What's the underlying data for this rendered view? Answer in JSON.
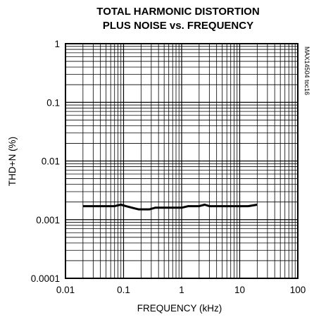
{
  "chart_data": {
    "type": "line",
    "title_lines": [
      "TOTAL HARMONIC DISTORTION",
      "PLUS NOISE vs. FREQUENCY"
    ],
    "xlabel": "FREQUENCY (kHz)",
    "ylabel": "THD+N (%)",
    "figure_code": "MAX14504 toc16",
    "x_scale": "log",
    "y_scale": "log",
    "xlim": [
      0.01,
      100
    ],
    "ylim": [
      0.0001,
      1
    ],
    "x_ticks": [
      0.01,
      0.1,
      1,
      10,
      100
    ],
    "x_tick_labels": [
      "0.01",
      "0.1",
      "1",
      "10",
      "100"
    ],
    "y_ticks": [
      0.0001,
      0.001,
      0.01,
      0.1,
      1
    ],
    "y_tick_labels": [
      "0.0001",
      "0.001",
      "0.01",
      "0.1",
      "1"
    ],
    "grid": true,
    "series": [
      {
        "x": [
          0.02,
          0.03,
          0.05,
          0.07,
          0.09,
          0.11,
          0.14,
          0.18,
          0.22,
          0.28,
          0.35,
          0.45,
          0.6,
          0.8,
          1.0,
          1.3,
          1.6,
          2.0,
          2.5,
          3.0,
          4.0,
          5.0,
          7.0,
          10.0,
          14.0,
          20.0
        ],
        "y": [
          0.0017,
          0.0017,
          0.0017,
          0.0017,
          0.0018,
          0.0017,
          0.0016,
          0.0015,
          0.0015,
          0.0015,
          0.0016,
          0.0016,
          0.0016,
          0.0016,
          0.0016,
          0.0017,
          0.0017,
          0.0017,
          0.0018,
          0.0017,
          0.0017,
          0.0017,
          0.0017,
          0.0017,
          0.0017,
          0.0018
        ]
      }
    ],
    "colors": {
      "line": "#000000",
      "grid": "#000000",
      "background": "#ffffff"
    }
  }
}
